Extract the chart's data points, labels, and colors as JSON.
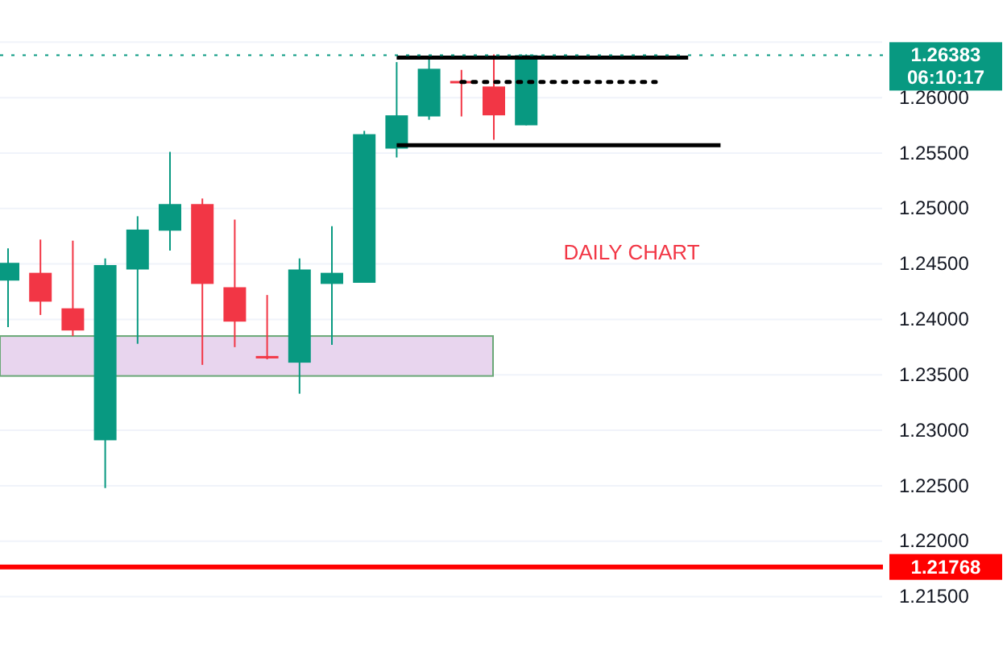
{
  "chart_data": {
    "type": "candlestick",
    "categories": [
      null,
      null,
      null,
      null,
      null,
      null,
      null,
      null,
      null,
      null,
      null,
      null,
      null,
      null,
      null,
      null,
      null,
      null,
      null,
      null,
      null,
      null,
      null,
      null,
      null,
      null,
      null
    ],
    "ohlc": [
      [
        1.2435,
        1.2464,
        1.2393,
        1.2451
      ],
      [
        1.2442,
        1.2472,
        1.2404,
        1.2416
      ],
      [
        1.241,
        1.2471,
        1.2385,
        1.239
      ],
      [
        1.2291,
        1.2455,
        1.2248,
        1.2449
      ],
      [
        1.2445,
        1.2493,
        1.2378,
        1.2481
      ],
      [
        1.248,
        1.2551,
        1.2462,
        1.2504
      ],
      [
        1.2504,
        1.2509,
        1.2359,
        1.2432
      ],
      [
        1.2429,
        1.249,
        1.2375,
        1.2398
      ],
      [
        1.2367,
        1.2422,
        1.2364,
        1.2366
      ],
      [
        1.2361,
        1.2455,
        1.2333,
        1.2445
      ],
      [
        1.2432,
        1.2484,
        1.2377,
        1.2442
      ],
      [
        1.2433,
        1.257,
        1.2433,
        1.2567
      ],
      [
        1.2554,
        1.2632,
        1.2546,
        1.2584
      ],
      [
        1.2583,
        1.2635,
        1.258,
        1.2626
      ],
      [
        1.2615,
        1.2625,
        1.2583,
        1.2614
      ],
      [
        1.261,
        1.2639,
        1.2562,
        1.2584
      ],
      [
        1.2575,
        1.2639,
        1.2575,
        1.26383
      ],
      null,
      null,
      null,
      null,
      null,
      null,
      null,
      null,
      null,
      null
    ],
    "colors": [
      "#089981",
      "#f23645",
      "#f23645",
      "#089981",
      "#089981",
      "#089981",
      "#f23645",
      "#f23645",
      "#f23645",
      "#089981",
      "#089981",
      "#089981",
      "#089981",
      "#089981",
      "#f23645",
      "#f23645",
      "#089981",
      null,
      null,
      null,
      null,
      null,
      null,
      null,
      null,
      null,
      null
    ],
    "series": [
      {
        "type": "line",
        "color": "#000000",
        "line_style": "solid",
        "values": [
          null,
          null,
          null,
          null,
          null,
          null,
          null,
          null,
          null,
          null,
          null,
          null,
          1.2636,
          1.2636,
          1.2636,
          1.2636,
          1.2636,
          1.2636,
          1.2636,
          1.2636,
          1.2636,
          1.2636,
          null,
          null,
          null,
          null,
          null
        ]
      },
      {
        "type": "line",
        "color": "#000000",
        "line_style": "solid",
        "values": [
          null,
          null,
          null,
          null,
          null,
          null,
          null,
          null,
          null,
          null,
          null,
          null,
          1.2557,
          1.2557,
          1.2557,
          1.2557,
          1.2557,
          1.2557,
          1.2557,
          1.2557,
          1.2557,
          1.2557,
          1.2557,
          null,
          null,
          null,
          null
        ]
      },
      {
        "type": "line",
        "color": "#000000",
        "line_style": "dotted",
        "values": [
          null,
          null,
          null,
          null,
          null,
          null,
          null,
          null,
          null,
          null,
          null,
          null,
          null,
          null,
          1.2614,
          1.2614,
          1.2614,
          1.2614,
          1.2614,
          1.2614,
          1.2614,
          null,
          null,
          null,
          null,
          null,
          null
        ]
      }
    ],
    "ylim": [
      1.2101,
      1.2688
    ],
    "yticks": [
      {
        "value": 1.215,
        "label": "1.21500"
      },
      {
        "value": 1.22,
        "label": "1.22000"
      },
      {
        "value": 1.225,
        "label": "1.22500"
      },
      {
        "value": 1.23,
        "label": "1.23000"
      },
      {
        "value": 1.235,
        "label": "1.23500"
      },
      {
        "value": 1.24,
        "label": "1.24000"
      },
      {
        "value": 1.245,
        "label": "1.24500"
      },
      {
        "value": 1.25,
        "label": "1.25000"
      },
      {
        "value": 1.255,
        "label": "1.25500"
      },
      {
        "value": 1.26,
        "label": "1.26000"
      },
      {
        "value": 1.265,
        "label": null
      }
    ],
    "grid": "y",
    "tick_labels": "y",
    "ref_lines": [
      {
        "axis": "y",
        "value": 1.26383,
        "label": "1.26383",
        "color": "#089981",
        "line_style": "dotted"
      },
      {
        "axis": "y",
        "value": 1.21768,
        "label": "1.21768",
        "color": "#ff0000",
        "line_style": "solid"
      }
    ],
    "bands": [
      {
        "axis": "y",
        "from": 1.2349,
        "to": 1.2385,
        "color": "#e8d5ee"
      }
    ],
    "annotations": [
      "06:10:17",
      "DAILY CHART"
    ]
  }
}
